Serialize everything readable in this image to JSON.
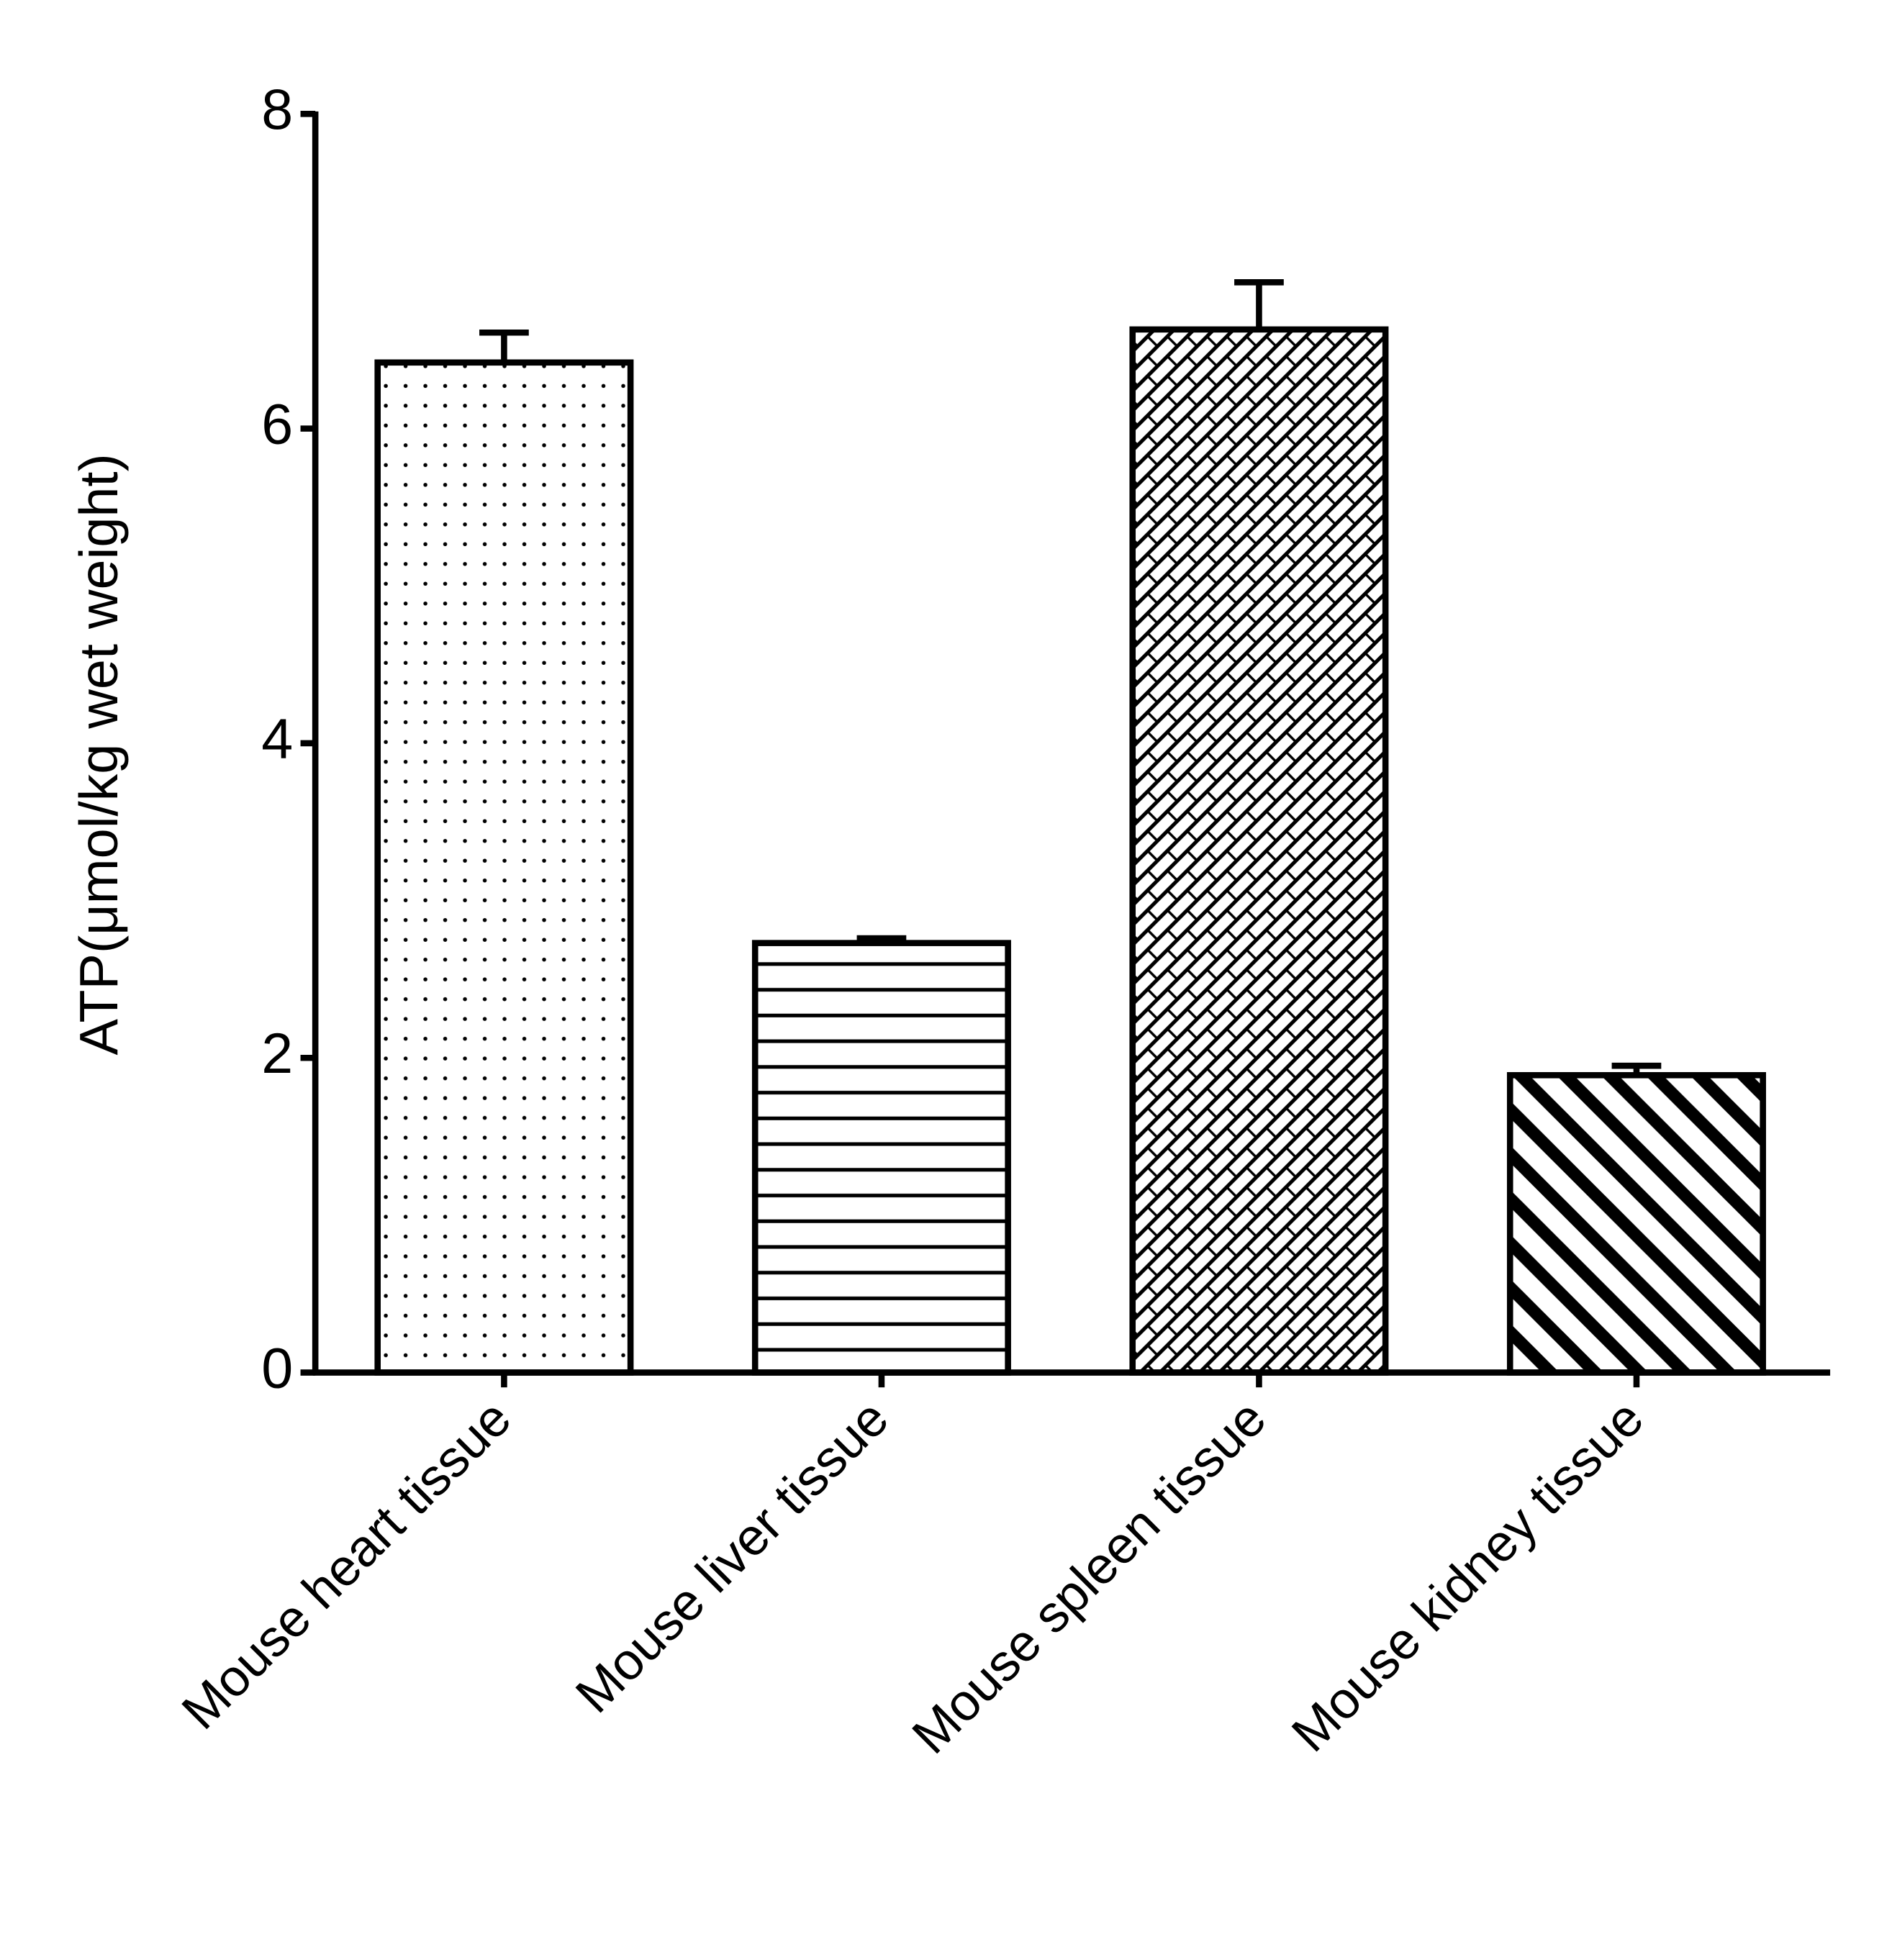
{
  "chart_data": {
    "type": "bar",
    "y_label": "ATP(μmol/kg wet weight)",
    "categories": [
      "Mouse heart tissue",
      "Mouse liver tissue",
      "Mouse spleen tissue",
      "Mouse kidney tissue"
    ],
    "values": [
      6.42,
      2.73,
      6.63,
      1.89
    ],
    "errors": [
      0.19,
      0.03,
      0.3,
      0.06
    ],
    "color": "#000000",
    "ylim": [
      0,
      8
    ],
    "yticks": [
      0,
      2,
      4,
      6,
      8
    ],
    "grid": false
  }
}
